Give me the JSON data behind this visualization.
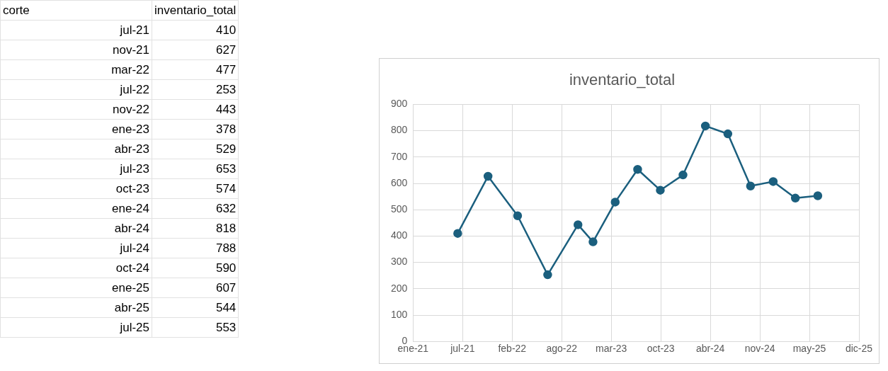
{
  "chart_data": [
    {
      "type": "other",
      "annotations": [
        "corte",
        "inventario_total",
        "jul-21",
        "410",
        "nov-21",
        "627",
        "mar-22",
        "477",
        "jul-22",
        "253",
        "nov-22",
        "443",
        "ene-23",
        "378",
        "abr-23",
        "529",
        "jul-23",
        "653",
        "oct-23",
        "574",
        "ene-24",
        "632",
        "abr-24",
        "818",
        "jul-24",
        "788",
        "oct-24",
        "590",
        "ene-25",
        "607",
        "abr-25",
        "544",
        "jul-25",
        "553"
      ]
    },
    {
      "type": "line",
      "title": "inventario_total",
      "x": [
        "2021-07",
        "2021-11",
        "2022-03",
        "2022-07",
        "2022-11",
        "2023-01",
        "2023-04",
        "2023-07",
        "2023-10",
        "2024-01",
        "2024-04",
        "2024-07",
        "2024-10",
        "2025-01",
        "2025-04",
        "2025-07"
      ],
      "values": [
        410,
        627,
        477,
        253,
        443,
        378,
        529,
        653,
        574,
        632,
        818,
        788,
        590,
        607,
        544,
        553
      ],
      "color": "#1b5f7e",
      "marker": "circle",
      "line_style": "solid",
      "grid": true,
      "legend": false,
      "xlim": [
        "2021-01-01",
        "2025-12-15"
      ],
      "xticks": [
        {
          "value": "2021-01-01",
          "label": "ene-21"
        },
        {
          "value": "2021-07-21",
          "label": "jul-21"
        },
        {
          "value": "2022-02-07",
          "label": "feb-22"
        },
        {
          "value": "2022-08-27",
          "label": "ago-22"
        },
        {
          "value": "2023-03-16",
          "label": "mar-23"
        },
        {
          "value": "2023-10-03",
          "label": "oct-23"
        },
        {
          "value": "2024-04-21",
          "label": "abr-24"
        },
        {
          "value": "2024-11-08",
          "label": "nov-24"
        },
        {
          "value": "2025-05-28",
          "label": "may-25"
        },
        {
          "value": "2025-12-15",
          "label": "dic-25"
        }
      ],
      "ylim": [
        0,
        900
      ],
      "yticks": [
        0,
        100,
        200,
        300,
        400,
        500,
        600,
        700,
        800,
        900
      ]
    }
  ]
}
